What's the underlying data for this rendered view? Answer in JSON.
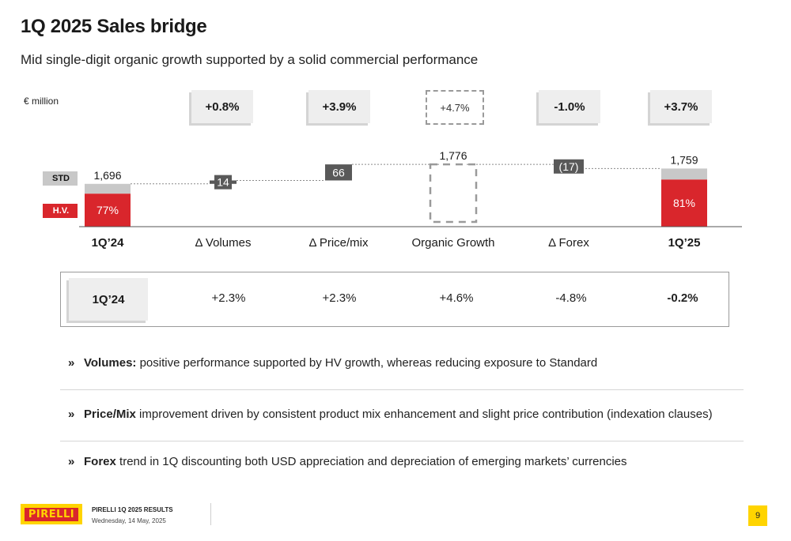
{
  "header": {
    "title": "1Q 2025 Sales bridge",
    "subtitle": "Mid single-digit organic growth supported by a solid commercial performance"
  },
  "unit_label": "€ million",
  "percent_boxes": [
    {
      "label": "+0.8%",
      "style": "solid"
    },
    {
      "label": "+3.9%",
      "style": "solid"
    },
    {
      "label": "+4.7%",
      "style": "dashed"
    },
    {
      "label": "-1.0%",
      "style": "solid"
    },
    {
      "label": "+3.7%",
      "style": "solid"
    }
  ],
  "legend": {
    "std": "STD",
    "hv": "H.V."
  },
  "colors": {
    "hv": "#d9262c",
    "std": "#c8c8c8",
    "delta": "#595959",
    "accent_yellow": "#ffd400"
  },
  "chart_data": {
    "type": "waterfall",
    "categories": [
      "1Q’24",
      "Δ Volumes",
      "Δ Price/mix",
      "Organic Growth",
      "Δ Forex",
      "1Q’25"
    ],
    "bold_categories": [
      "1Q’24",
      "1Q’25"
    ],
    "values": [
      1696,
      14,
      66,
      1776,
      -17,
      1759
    ],
    "value_labels": [
      "1,696",
      "14",
      "66",
      "1,776",
      "(17)",
      "1,759"
    ],
    "bar_kinds": [
      "total",
      "delta",
      "delta",
      "subtotal-dashed",
      "delta",
      "total"
    ],
    "hv_share_labels": [
      "77%",
      "",
      "",
      "",
      "",
      "81%"
    ],
    "hv_share": [
      0.77,
      null,
      null,
      null,
      null,
      0.81
    ]
  },
  "growth_table": {
    "label": "1Q’24",
    "values": [
      "+2.3%",
      "+2.3%",
      "+4.6%",
      "-4.8%",
      "-0.2%"
    ]
  },
  "bullets": [
    {
      "key": "Volumes:",
      "text": " positive performance supported by HV growth, whereas reducing exposure to Standard"
    },
    {
      "key": "Price/Mix",
      "text": " improvement driven by consistent product mix enhancement and slight price contribution (indexation clauses)"
    },
    {
      "key": "Forex",
      "text": " trend in 1Q discounting both USD appreciation and depreciation of emerging markets’ currencies"
    }
  ],
  "footer": {
    "logo_text": "PIRELLI",
    "report": "PIRELLI 1Q 2025 RESULTS",
    "date": "Wednesday, 14 May, 2025",
    "page": "9"
  }
}
